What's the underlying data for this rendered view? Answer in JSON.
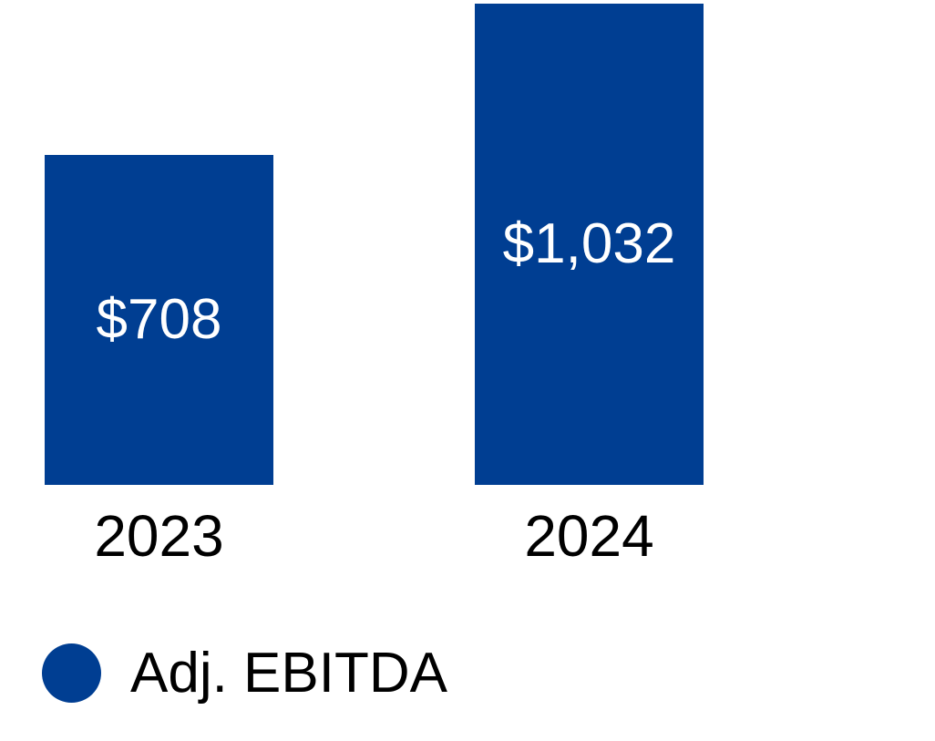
{
  "chart_data": {
    "type": "bar",
    "categories": [
      "2023",
      "2024"
    ],
    "series": [
      {
        "name": "Adj. EBITDA",
        "values": [
          708,
          1032
        ]
      }
    ],
    "value_labels": [
      "$708",
      "$1,032"
    ],
    "title": "",
    "xlabel": "",
    "ylabel": "",
    "ylim": [
      0,
      1032
    ],
    "grid": false,
    "axes_visible": false,
    "legend_position": "bottom-left",
    "colors": {
      "bar_fill": "#003E92",
      "value_label": "#FFFFFF",
      "category_label": "#000000",
      "legend_text": "#000000",
      "background": "#FFFFFF"
    }
  },
  "legend": {
    "items": [
      {
        "label": "Adj. EBITDA",
        "marker": "circle",
        "color": "#003E92"
      }
    ]
  }
}
